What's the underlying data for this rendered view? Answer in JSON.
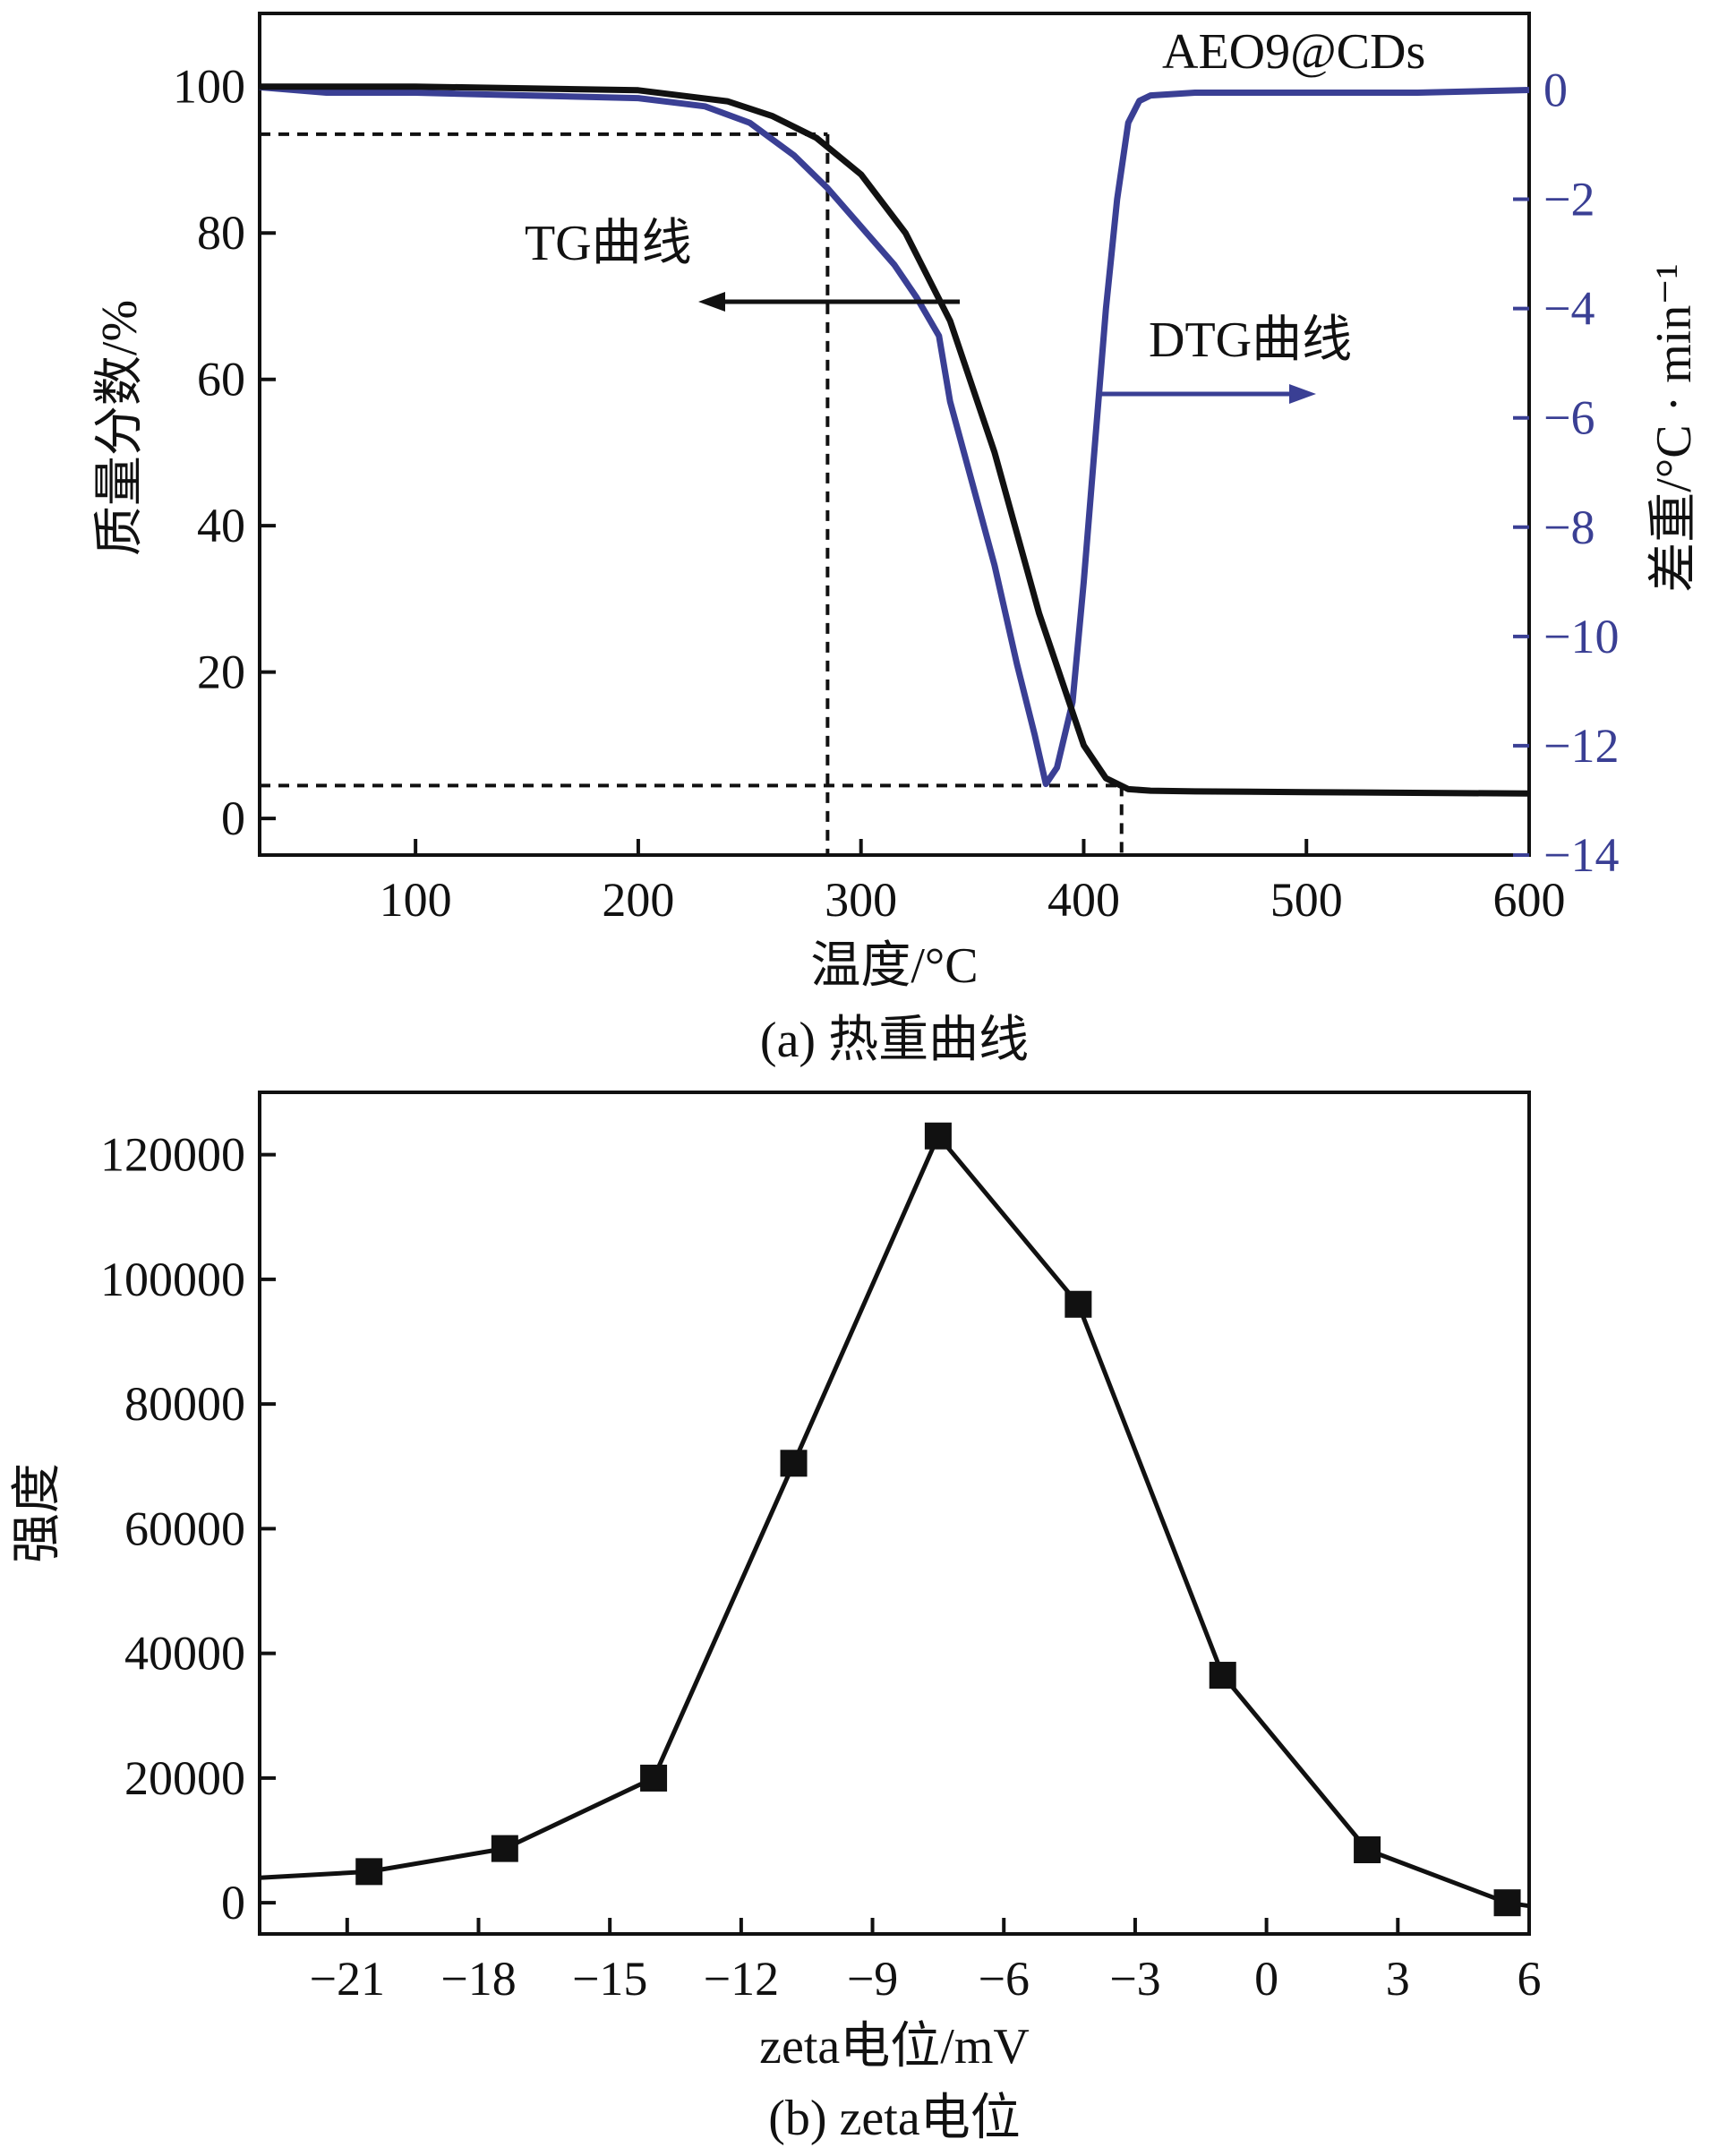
{
  "colors": {
    "tg": "#111111",
    "dtg": "#3a3f94",
    "axis": "#111111"
  },
  "chart_data": [
    {
      "type": "line",
      "caption": "(a) 热重曲线",
      "title": "AEO9@CDs",
      "xlabel": "温度/°C",
      "ylabel": "质量分数/%",
      "y2label": "差重/°C · min⁻¹",
      "xlim": [
        30,
        600
      ],
      "ylim": [
        -5,
        110
      ],
      "y2lim": [
        -14,
        1.4
      ],
      "xticks": [
        100,
        200,
        300,
        400,
        500,
        600
      ],
      "yticks": [
        0,
        20,
        40,
        60,
        80,
        100
      ],
      "y2ticks": [
        0,
        -2,
        -4,
        -6,
        -8,
        -10,
        -12,
        -14
      ],
      "y2ticklabels": [
        "0",
        "−2",
        "−4",
        "−6",
        "−8",
        "−10",
        "−12",
        "−14"
      ],
      "annotations": {
        "tg": "TG曲线",
        "dtg": "DTG曲线"
      },
      "reference_lines": {
        "vertical_x": [
          285,
          417
        ],
        "horizontal_y": [
          93.5,
          4.5
        ]
      },
      "series": [
        {
          "name": "TG曲线",
          "axis": "left",
          "x": [
            30,
            100,
            200,
            240,
            260,
            280,
            300,
            320,
            340,
            360,
            380,
            400,
            410,
            420,
            430,
            450,
            500,
            600
          ],
          "y": [
            100,
            100,
            99.5,
            98,
            96,
            93,
            88,
            80,
            68,
            50,
            28,
            10,
            5.5,
            4,
            3.8,
            3.7,
            3.6,
            3.4
          ]
        },
        {
          "name": "DTG曲线",
          "axis": "right",
          "x": [
            30,
            60,
            100,
            150,
            200,
            230,
            250,
            270,
            285,
            300,
            315,
            325,
            335,
            340,
            350,
            360,
            370,
            378,
            383,
            388,
            395,
            400,
            405,
            410,
            415,
            420,
            425,
            430,
            450,
            500,
            550,
            600
          ],
          "y": [
            0.05,
            -0.05,
            -0.05,
            -0.1,
            -0.15,
            -0.3,
            -0.6,
            -1.2,
            -1.8,
            -2.5,
            -3.2,
            -3.8,
            -4.5,
            -5.7,
            -7.2,
            -8.7,
            -10.5,
            -11.8,
            -12.7,
            -12.4,
            -11.2,
            -9.0,
            -6.5,
            -4.0,
            -2.0,
            -0.6,
            -0.2,
            -0.1,
            -0.05,
            -0.05,
            -0.05,
            0.0
          ]
        }
      ]
    },
    {
      "type": "line",
      "caption": "(b) zeta电位",
      "xlabel": "zeta电位/mV",
      "ylabel": "强度",
      "xlim": [
        -23,
        6
      ],
      "ylim": [
        -5000,
        130000
      ],
      "xticks": [
        -21,
        -18,
        -15,
        -12,
        -9,
        -6,
        -3,
        0,
        3,
        6
      ],
      "xticklabels": [
        "−21",
        "−18",
        "−15",
        "−12",
        "−9",
        "−6",
        "−3",
        "0",
        "3",
        "6"
      ],
      "yticks": [
        0,
        20000,
        40000,
        60000,
        80000,
        100000,
        120000
      ],
      "line_x": [
        -23,
        -20.5,
        -17.4,
        -14.0,
        -10.8,
        -7.5,
        -4.3,
        -1.0,
        2.3,
        5.5,
        6
      ],
      "line_y": [
        4000,
        5000,
        8700,
        20000,
        70500,
        123000,
        96000,
        36500,
        8500,
        0,
        -500
      ],
      "series": [
        {
          "name": "强度",
          "x": [
            -20.5,
            -17.4,
            -14.0,
            -10.8,
            -7.5,
            -4.3,
            -1.0,
            2.3,
            5.5
          ],
          "y": [
            5000,
            8700,
            20000,
            70500,
            123000,
            96000,
            36500,
            8500,
            0
          ]
        }
      ]
    }
  ]
}
